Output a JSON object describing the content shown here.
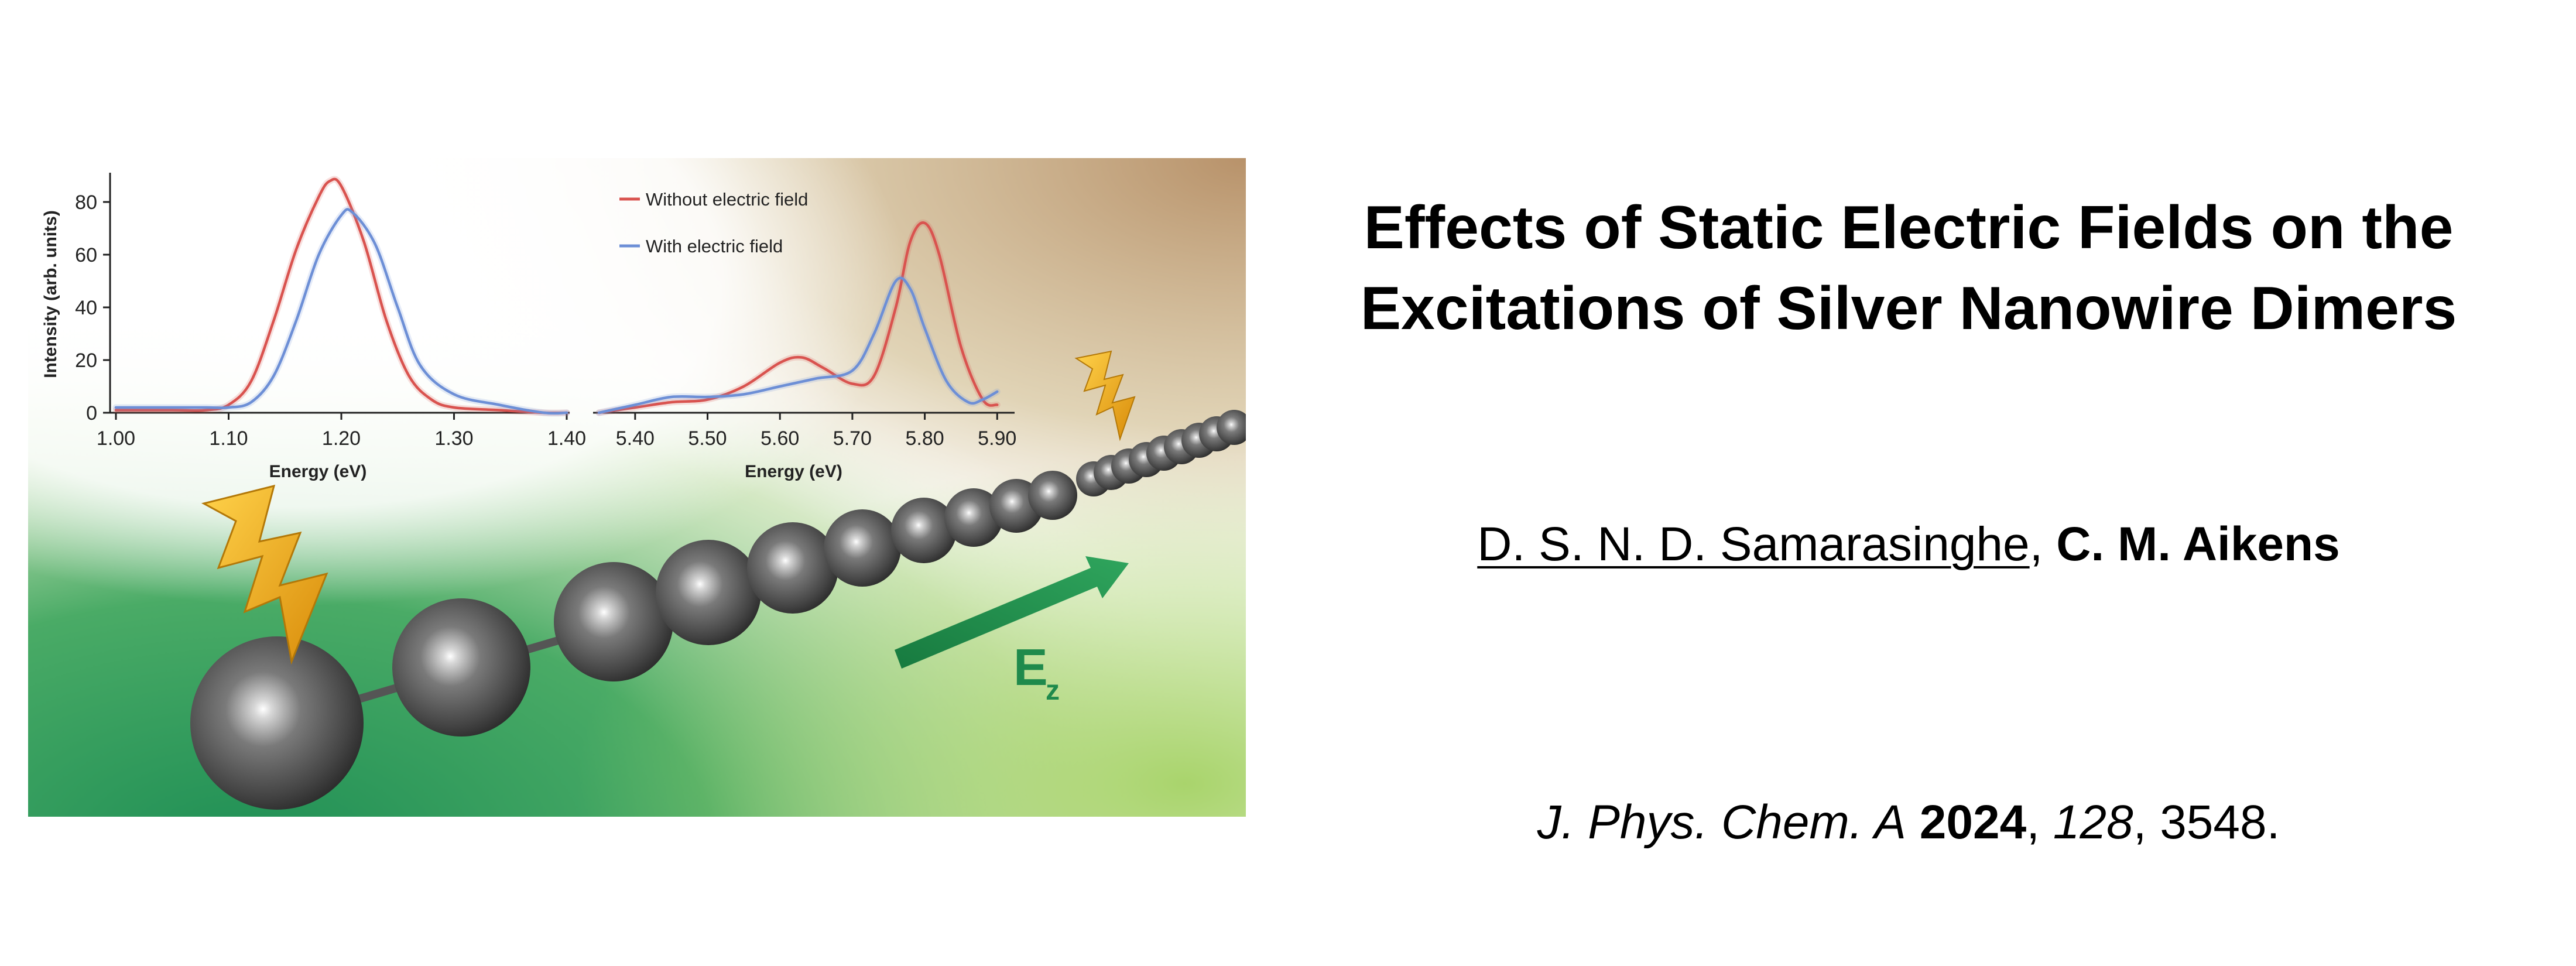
{
  "title": {
    "line1": "Effects of Static Electric Fields on the",
    "line2": "Excitations of Silver Nanowire Dimers"
  },
  "authors": [
    {
      "name": "D. S. N. D. Samarasinghe",
      "style": "underline"
    },
    {
      "name": "C. M. Aikens",
      "style": "bold"
    }
  ],
  "author_separator": ", ",
  "citation": {
    "journal": "J. Phys. Chem. A",
    "sep1": " ",
    "year": "2024",
    "sep2": ", ",
    "volume": "128",
    "sep3": ", ",
    "pages": "3548."
  },
  "graphic": {
    "field_label": "E",
    "field_subscript": "z",
    "colors": {
      "bg_green": "#2e9a5a",
      "bg_light_green": "#a9d46c",
      "bg_tan": "#b8926a",
      "arrow": "#1f8a4c",
      "bolt": "#f2b21a",
      "sphere": "#5c5c5c"
    }
  },
  "chart_data": [
    {
      "type": "line",
      "xlabel": "Energy (eV)",
      "ylabel": "Intensity (arb. units)",
      "xlim": [
        1.0,
        1.4
      ],
      "ylim": [
        0,
        90
      ],
      "xticks": [
        "1.00",
        "1.10",
        "1.20",
        "1.30",
        "1.40"
      ],
      "yticks": [
        "0",
        "20",
        "40",
        "60",
        "80"
      ],
      "grid": false,
      "series": [
        {
          "name": "Without electric field",
          "color": "#d9534f",
          "x": [
            1.0,
            1.05,
            1.08,
            1.1,
            1.12,
            1.14,
            1.16,
            1.18,
            1.19,
            1.2,
            1.22,
            1.24,
            1.26,
            1.28,
            1.3,
            1.34,
            1.38,
            1.4
          ],
          "y": [
            1,
            1,
            1,
            3,
            12,
            35,
            62,
            82,
            88,
            86,
            65,
            35,
            14,
            5,
            2,
            1,
            0,
            0
          ]
        },
        {
          "name": "With electric field",
          "color": "#6d8fd6",
          "x": [
            1.0,
            1.05,
            1.08,
            1.1,
            1.12,
            1.14,
            1.16,
            1.18,
            1.2,
            1.21,
            1.23,
            1.25,
            1.27,
            1.3,
            1.34,
            1.38,
            1.4
          ],
          "y": [
            2,
            2,
            2,
            2,
            4,
            14,
            35,
            60,
            75,
            76,
            64,
            40,
            18,
            7,
            3,
            0,
            0
          ]
        }
      ]
    },
    {
      "type": "line",
      "xlabel": "Energy (eV)",
      "xlim": [
        5.35,
        5.92
      ],
      "ylim": [
        0,
        90
      ],
      "xticks": [
        "5.40",
        "5.50",
        "5.60",
        "5.70",
        "5.80",
        "5.90"
      ],
      "legend": "top-left",
      "grid": false,
      "series": [
        {
          "name": "Without electric field",
          "color": "#d9534f",
          "x": [
            5.35,
            5.4,
            5.45,
            5.5,
            5.55,
            5.6,
            5.63,
            5.66,
            5.7,
            5.73,
            5.76,
            5.78,
            5.8,
            5.82,
            5.85,
            5.88,
            5.9
          ],
          "y": [
            0,
            2,
            4,
            5,
            10,
            19,
            21,
            17,
            11,
            14,
            40,
            65,
            72,
            60,
            25,
            5,
            3
          ]
        },
        {
          "name": "With electric field",
          "color": "#6d8fd6",
          "x": [
            5.35,
            5.4,
            5.45,
            5.5,
            5.55,
            5.6,
            5.65,
            5.7,
            5.73,
            5.76,
            5.78,
            5.8,
            5.83,
            5.86,
            5.88,
            5.9
          ],
          "y": [
            0,
            3,
            6,
            6,
            7,
            10,
            13,
            16,
            30,
            50,
            47,
            32,
            12,
            4,
            5,
            8
          ]
        }
      ]
    }
  ]
}
